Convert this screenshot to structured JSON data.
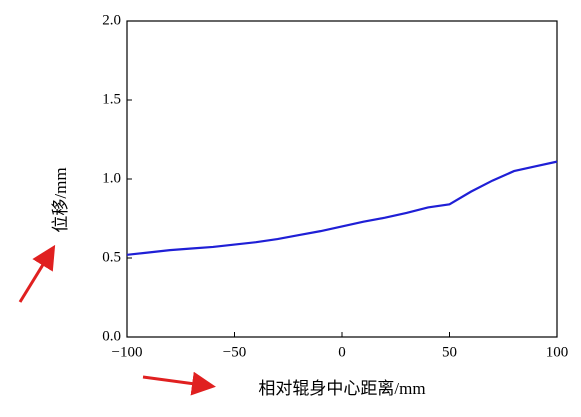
{
  "chart_data": {
    "type": "line",
    "xlabel": "相对辊身中心距离/mm",
    "ylabel": "位移/mm",
    "x": [
      -100,
      -90,
      -80,
      -70,
      -60,
      -50,
      -40,
      -30,
      -20,
      -10,
      0,
      10,
      20,
      30,
      40,
      50,
      60,
      70,
      80,
      90,
      100
    ],
    "values": [
      0.52,
      0.535,
      0.55,
      0.56,
      0.57,
      0.585,
      0.6,
      0.62,
      0.645,
      0.67,
      0.7,
      0.73,
      0.755,
      0.785,
      0.82,
      0.84,
      0.92,
      0.99,
      1.05,
      1.08,
      1.11
    ],
    "color": "#1f1fd6",
    "xlim": [
      -100,
      100
    ],
    "xticks": [
      {
        "value": -100,
        "label": "−100"
      },
      {
        "value": -50,
        "label": "−50"
      },
      0,
      50,
      100
    ],
    "ylim": [
      0,
      2
    ],
    "yticks": [
      {
        "value": 0,
        "label": "0.0"
      },
      {
        "value": 0.5,
        "label": "0.5"
      },
      {
        "value": 1,
        "label": "1.0"
      },
      {
        "value": 1.5,
        "label": "1.5"
      },
      {
        "value": 2,
        "label": "2.0"
      }
    ],
    "grid": false
  }
}
